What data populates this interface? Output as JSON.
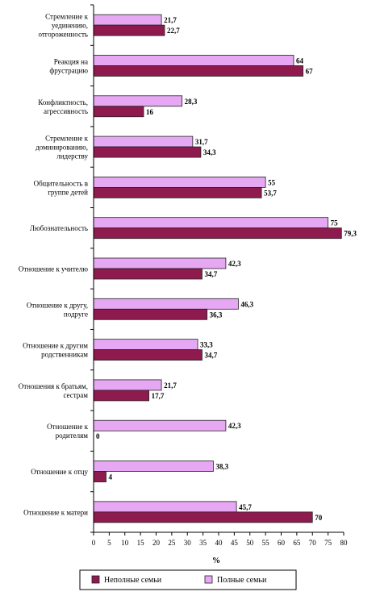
{
  "chart_data": {
    "type": "bar",
    "orientation": "horizontal",
    "categories": [
      [
        "Стремление к",
        "уединению,",
        "отгороженность"
      ],
      [
        "Реакция на",
        "фрустрацию"
      ],
      [
        "Конфликтность,",
        "агрессивность"
      ],
      [
        "Стремление к",
        "доминированию,",
        "лидерству"
      ],
      [
        "Общительность в",
        "группе детей"
      ],
      [
        "Любознательность"
      ],
      [
        "Отношение к учителю"
      ],
      [
        "Отношение к другу,",
        "подруге"
      ],
      [
        "Отношение к другим",
        "родственникам"
      ],
      [
        "Отношения к братьям,",
        "сестрам"
      ],
      [
        "Отношение к",
        "родителям"
      ],
      [
        "Отношение к отцу"
      ],
      [
        "Отношение к матери"
      ]
    ],
    "series": [
      {
        "name": "Полные семьи",
        "color": "#e6a8f2",
        "values": [
          21.7,
          64,
          28.3,
          31.7,
          55,
          75,
          42.3,
          46.3,
          33.3,
          21.7,
          42.3,
          38.3,
          45.7
        ],
        "labels": [
          "21,7",
          "64",
          "28,3",
          "31,7",
          "55",
          "75",
          "42,3",
          "46,3",
          "33,3",
          "21,7",
          "42,3",
          "38,3",
          "45,7"
        ]
      },
      {
        "name": "Неполные семьи",
        "color": "#8e1a4e",
        "values": [
          22.7,
          67,
          16,
          34.3,
          53.7,
          79.3,
          34.7,
          36.3,
          34.7,
          17.7,
          0,
          4,
          70
        ],
        "labels": [
          "22,7",
          "67",
          "16",
          "34,3",
          "53,7",
          "79,3",
          "34,7",
          "36,3",
          "34,7",
          "17,7",
          "0",
          "4",
          "70"
        ]
      }
    ],
    "xlim": [
      0,
      80
    ],
    "xticks": [
      "0",
      "5",
      "10",
      "15",
      "20",
      "25",
      "30",
      "35",
      "40",
      "45",
      "50",
      "55",
      "60",
      "65",
      "70",
      "75",
      "80"
    ],
    "xlabel": "%",
    "grid": false,
    "legend": {
      "placement": "bottom",
      "order": [
        "Неполные семьи",
        "Полные семьи"
      ]
    }
  }
}
